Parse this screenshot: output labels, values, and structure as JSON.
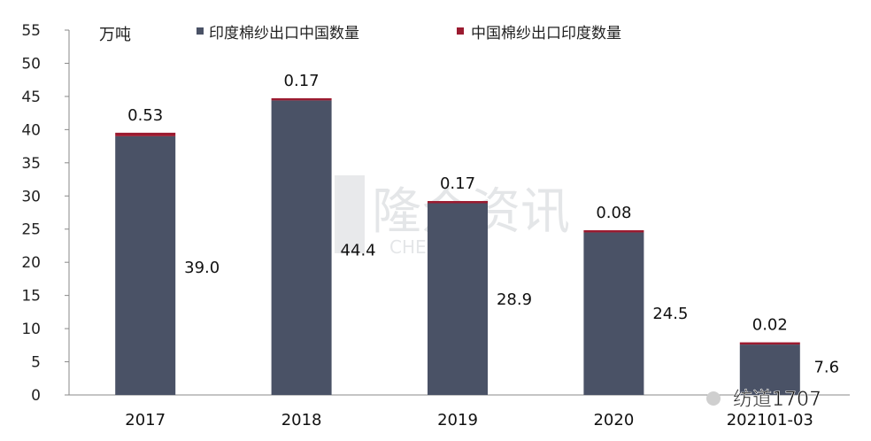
{
  "chart_data": {
    "type": "bar",
    "stacked": true,
    "unit_label": "万吨",
    "categories": [
      "2017",
      "2018",
      "2019",
      "2020",
      "202101-03"
    ],
    "series": [
      {
        "name": "印度棉纱出口中国数量",
        "color": "#4a5266",
        "values": [
          39.0,
          44.4,
          28.9,
          24.5,
          7.6
        ],
        "labels": [
          "39.0",
          "44.4",
          "28.9",
          "24.5",
          "7.6"
        ]
      },
      {
        "name": "中国棉纱出口印度数量",
        "color": "#9b1b30",
        "values": [
          0.53,
          0.17,
          0.17,
          0.08,
          0.02
        ],
        "labels": [
          "0.53",
          "0.17",
          "0.17",
          "0.08",
          "0.02"
        ]
      }
    ],
    "ylim": [
      0,
      55
    ],
    "yticks": [
      "0",
      "5",
      "10",
      "15",
      "20",
      "25",
      "30",
      "35",
      "40",
      "45",
      "50",
      "55"
    ],
    "grid": false,
    "legend_position": "top"
  },
  "watermark": {
    "text": "隆众资讯",
    "subtext": "CHEM.NET"
  },
  "footer_badge": {
    "text": "纺道1707"
  }
}
